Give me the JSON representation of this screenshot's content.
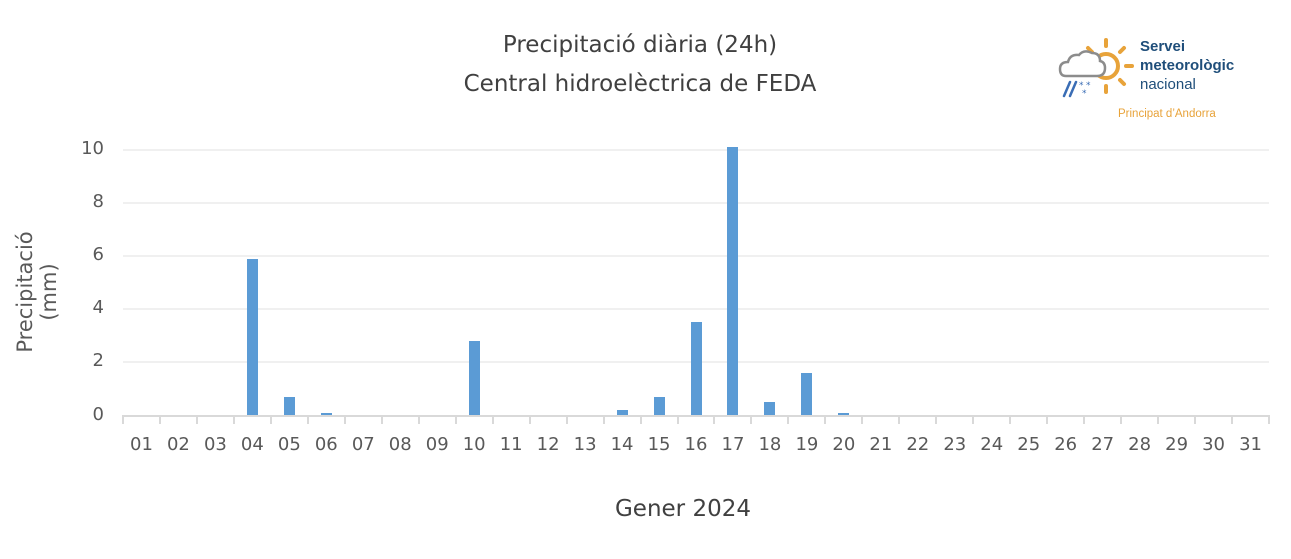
{
  "title": {
    "line1": "Precipitació diària (24h)",
    "line2": "Central hidroelèctrica de FEDA"
  },
  "logo": {
    "icon": "weather-sun-cloud-rain-snow-icon",
    "line1": "Servei",
    "line2": "meteorològic",
    "line3": "nacional",
    "subtitle": "Principat d’Andorra",
    "colors": {
      "text": "#1f4e7a",
      "sun": "#e8a33a",
      "cloud": "#8c8c8c",
      "rain": "#3a6db5"
    }
  },
  "axes": {
    "ylabel": "Precipitació (mm)",
    "xlabel": "Gener 2024",
    "yticks": [
      "10",
      "8",
      "6",
      "4",
      "2",
      "0"
    ]
  },
  "colors": {
    "bar": "#5b9bd5",
    "grid": "#f0f0f0",
    "axis": "#d9d9d9"
  },
  "chart_data": {
    "type": "bar",
    "title": "Precipitació diària (24h) — Central hidroelèctrica de FEDA",
    "xlabel": "Gener 2024",
    "ylabel": "Precipitació (mm)",
    "ylim": [
      0,
      10
    ],
    "yticks": [
      0,
      2,
      4,
      6,
      8,
      10
    ],
    "grid": true,
    "legend": null,
    "categories": [
      "01",
      "02",
      "03",
      "04",
      "05",
      "06",
      "07",
      "08",
      "09",
      "10",
      "11",
      "12",
      "13",
      "14",
      "15",
      "16",
      "17",
      "18",
      "19",
      "20",
      "21",
      "22",
      "23",
      "24",
      "25",
      "26",
      "27",
      "28",
      "29",
      "30",
      "31"
    ],
    "values": [
      0,
      0,
      0,
      5.9,
      0.7,
      0.1,
      0,
      0,
      0,
      2.8,
      0,
      0,
      0,
      0.2,
      0.7,
      3.5,
      10.1,
      0.5,
      1.6,
      0.1,
      0,
      0,
      0,
      0,
      0,
      0,
      0,
      0,
      0,
      0,
      0
    ]
  }
}
